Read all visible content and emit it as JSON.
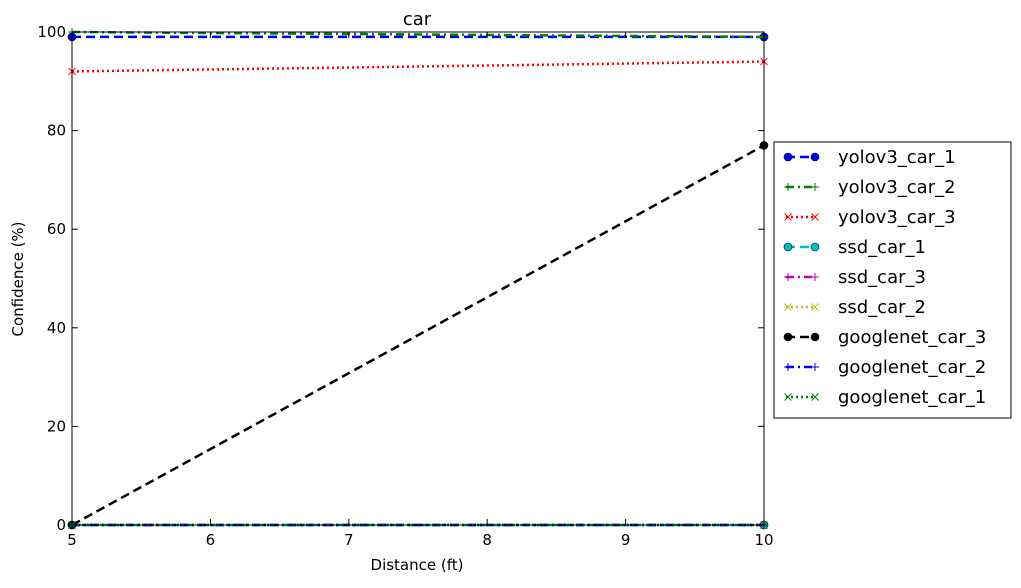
{
  "chart_data": {
    "type": "line",
    "title": "car",
    "xlabel": "Distance (ft)",
    "ylabel": "Confidence (%)",
    "xlim": [
      5,
      10
    ],
    "ylim": [
      0,
      100
    ],
    "x_ticks": [
      "5",
      "6",
      "7",
      "8",
      "9",
      "10"
    ],
    "y_ticks": [
      "0",
      "20",
      "40",
      "60",
      "80",
      "100"
    ],
    "grid": false,
    "legend_position": "outside-right",
    "x": [
      5,
      10
    ],
    "series": [
      {
        "name": "yolov3_car_1",
        "values": [
          99,
          99
        ],
        "color": "#0000ff",
        "linestyle": "dashed",
        "marker": "circle"
      },
      {
        "name": "yolov3_car_2",
        "values": [
          100,
          99
        ],
        "color": "#008000",
        "linestyle": "dashdot",
        "marker": "plus"
      },
      {
        "name": "yolov3_car_3",
        "values": [
          92,
          94
        ],
        "color": "#ff0000",
        "linestyle": "dotted",
        "marker": "x"
      },
      {
        "name": "ssd_car_1",
        "values": [
          0,
          0
        ],
        "color": "#00bfbf",
        "linestyle": "dashed",
        "marker": "circle"
      },
      {
        "name": "ssd_car_3",
        "values": [
          0,
          0
        ],
        "color": "#bf00bf",
        "linestyle": "dashdot",
        "marker": "plus"
      },
      {
        "name": "ssd_car_2",
        "values": [
          0,
          0
        ],
        "color": "#bfbf00",
        "linestyle": "dotted",
        "marker": "x"
      },
      {
        "name": "googlenet_car_3",
        "values": [
          0,
          77
        ],
        "color": "#000000",
        "linestyle": "dashed",
        "marker": "circle"
      },
      {
        "name": "googlenet_car_2",
        "values": [
          0,
          0
        ],
        "color": "#0000ff",
        "linestyle": "dashdot",
        "marker": "plus"
      },
      {
        "name": "googlenet_car_1",
        "values": [
          0,
          0
        ],
        "color": "#008000",
        "linestyle": "dotted",
        "marker": "x"
      }
    ]
  }
}
